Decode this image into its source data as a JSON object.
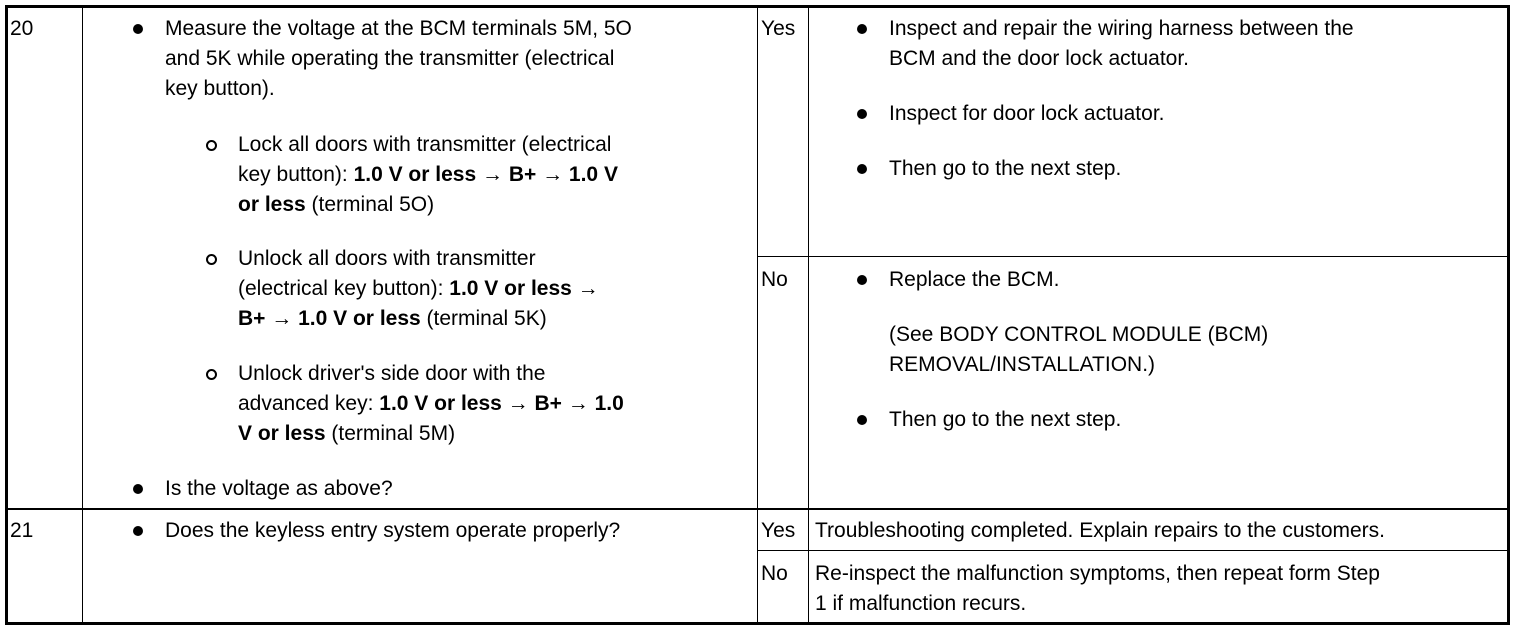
{
  "rows": [
    {
      "step": "20",
      "check": {
        "intro": [
          "Measure the voltage at the BCM terminals 5M, 5O",
          "and 5K while operating the transmitter (electrical",
          "key button)."
        ],
        "sub1": {
          "l1": "Lock all doors with transmitter (electrical",
          "l2a": "key button): ",
          "l2b": "1.0 V or less",
          "l2c": " → ",
          "l2d": "B+",
          "l2e": " → ",
          "l2f": "1.0 V",
          "l3a": "or less",
          "l3b": " (terminal 5O)"
        },
        "sub2": {
          "l1": "Unlock all doors with transmitter",
          "l2a": "(electrical key button): ",
          "l2b": "1.0 V or less",
          "l2c": " →",
          "l3a": "B+",
          "l3b": " → ",
          "l3c": "1.0 V or less",
          "l3d": " (terminal 5K)"
        },
        "sub3": {
          "l1": "Unlock driver's side door with the",
          "l2a": "advanced key: ",
          "l2b": "1.0 V or less",
          "l2c": " → ",
          "l2d": "B+",
          "l2e": " → ",
          "l2f": "1.0",
          "l3a": "V or less",
          "l3b": " (terminal 5M)"
        },
        "question": "Is the voltage as above?"
      },
      "yes": {
        "label": "Yes",
        "items": [
          [
            "Inspect and repair the wiring harness between the",
            "BCM and the door lock actuator."
          ],
          [
            "Inspect for door lock actuator."
          ],
          [
            "Then go to the next step."
          ]
        ]
      },
      "no": {
        "label": "No",
        "item1": "Replace the BCM.",
        "note": [
          "(See BODY CONTROL MODULE (BCM)",
          "REMOVAL/INSTALLATION.)"
        ],
        "item2": "Then go to the next step."
      }
    },
    {
      "step": "21",
      "question": "Does the keyless entry system operate properly?",
      "yes": {
        "label": "Yes",
        "text": "Troubleshooting completed. Explain repairs to the customers."
      },
      "no": {
        "label": "No",
        "text": [
          "Re-inspect the malfunction symptoms, then repeat form Step",
          "1 if malfunction recurs."
        ]
      }
    }
  ]
}
